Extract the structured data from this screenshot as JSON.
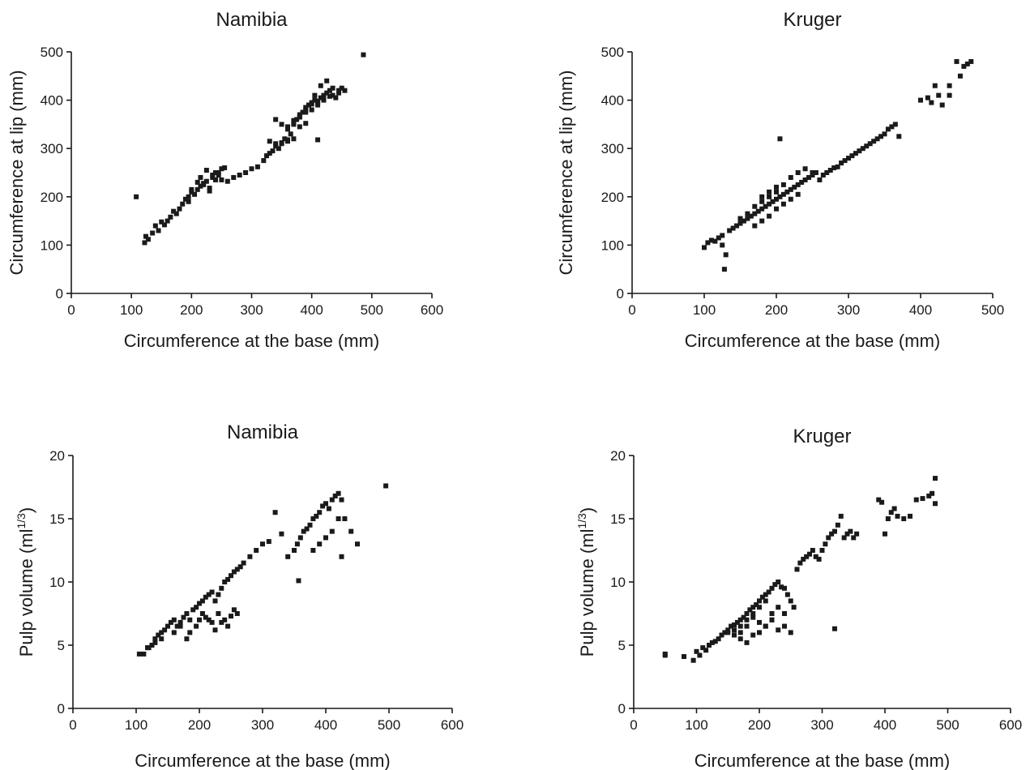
{
  "chart_data": [
    {
      "type": "scatter",
      "title": "Namibia",
      "xlabel": "Circumference at the base (mm)",
      "ylabel": "Circumference at lip (mm)",
      "xlim": [
        0,
        600
      ],
      "ylim": [
        0,
        500
      ],
      "xticks": [
        "0",
        "100",
        "200",
        "300",
        "400",
        "500",
        "600"
      ],
      "yticks": [
        "0",
        "100",
        "200",
        "300",
        "400",
        "500"
      ],
      "grid": false,
      "marker": "square",
      "color": "#1a1a1a",
      "series": [
        {
          "x": [
            108,
            122,
            124,
            128,
            135,
            140,
            145,
            150,
            155,
            160,
            165,
            170,
            175,
            180,
            185,
            190,
            195,
            200,
            205,
            210,
            215,
            220,
            225,
            230,
            235,
            240,
            245,
            250,
            255,
            210,
            220,
            230,
            240,
            200,
            195,
            215,
            225,
            235,
            245,
            250,
            260,
            270,
            280,
            290,
            300,
            310,
            320,
            325,
            330,
            335,
            340,
            345,
            350,
            355,
            360,
            365,
            370,
            375,
            380,
            385,
            390,
            395,
            400,
            405,
            410,
            415,
            420,
            425,
            430,
            435,
            440,
            445,
            450,
            455,
            360,
            370,
            380,
            390,
            400,
            410,
            420,
            430,
            340,
            350,
            360,
            370,
            380,
            390,
            400,
            410,
            420,
            330,
            340,
            350,
            360,
            370,
            380,
            390,
            405,
            415,
            425,
            435,
            445,
            410,
            486
          ],
          "y": [
            200,
            105,
            118,
            112,
            125,
            140,
            130,
            148,
            142,
            150,
            158,
            170,
            165,
            175,
            185,
            195,
            200,
            210,
            205,
            215,
            222,
            228,
            232,
            218,
            240,
            250,
            245,
            258,
            260,
            230,
            225,
            212,
            235,
            215,
            190,
            240,
            255,
            245,
            250,
            235,
            232,
            240,
            245,
            250,
            258,
            262,
            275,
            285,
            290,
            295,
            310,
            300,
            312,
            320,
            315,
            330,
            350,
            360,
            365,
            375,
            380,
            390,
            392,
            400,
            395,
            405,
            410,
            415,
            420,
            410,
            405,
            415,
            425,
            420,
            340,
            355,
            370,
            385,
            395,
            398,
            402,
            408,
            360,
            350,
            345,
            358,
            365,
            375,
            380,
            390,
            400,
            315,
            305,
            310,
            318,
            320,
            345,
            352,
            410,
            430,
            440,
            425,
            420,
            318,
            494
          ]
        }
      ]
    },
    {
      "type": "scatter",
      "title": "Kruger",
      "xlabel": "Circumference at the base (mm)",
      "ylabel": "Circumference at lip (mm)",
      "xlim": [
        0,
        500
      ],
      "ylim": [
        0,
        500
      ],
      "xticks": [
        "0",
        "100",
        "200",
        "300",
        "400",
        "500"
      ],
      "yticks": [
        "0",
        "100",
        "200",
        "300",
        "400",
        "500"
      ],
      "grid": false,
      "marker": "square",
      "color": "#1a1a1a",
      "series": [
        {
          "x": [
            100,
            105,
            110,
            115,
            120,
            125,
            128,
            130,
            135,
            140,
            145,
            150,
            155,
            160,
            165,
            170,
            175,
            180,
            185,
            190,
            195,
            200,
            205,
            210,
            215,
            220,
            225,
            230,
            235,
            240,
            245,
            250,
            255,
            260,
            265,
            270,
            275,
            280,
            285,
            290,
            295,
            300,
            305,
            310,
            315,
            320,
            325,
            330,
            335,
            340,
            345,
            350,
            355,
            360,
            365,
            370,
            150,
            160,
            170,
            180,
            190,
            200,
            210,
            220,
            230,
            240,
            250,
            170,
            180,
            190,
            200,
            210,
            220,
            230,
            180,
            190,
            200,
            125,
            205,
            400,
            410,
            415,
            420,
            425,
            430,
            440,
            450,
            455,
            460,
            465,
            470,
            440
          ],
          "y": [
            95,
            105,
            110,
            108,
            115,
            120,
            50,
            80,
            130,
            135,
            140,
            145,
            150,
            155,
            160,
            165,
            170,
            175,
            180,
            185,
            190,
            195,
            200,
            205,
            210,
            215,
            220,
            225,
            230,
            235,
            240,
            245,
            250,
            235,
            245,
            250,
            255,
            260,
            262,
            270,
            275,
            280,
            285,
            290,
            295,
            300,
            305,
            310,
            315,
            320,
            325,
            330,
            340,
            345,
            350,
            325,
            155,
            165,
            180,
            190,
            200,
            210,
            225,
            240,
            250,
            258,
            250,
            140,
            150,
            160,
            175,
            185,
            195,
            205,
            200,
            210,
            220,
            100,
            320,
            400,
            405,
            395,
            430,
            410,
            390,
            430,
            480,
            450,
            470,
            475,
            480,
            410
          ]
        }
      ]
    },
    {
      "type": "scatter",
      "title": "Namibia",
      "xlabel": "Circumference at the base (mm)",
      "ylabel": "Pulp volume (ml",
      "ylabel_exponent": "1/3",
      "ylabel_suffix": ")",
      "xlim": [
        0,
        600
      ],
      "ylim": [
        0,
        20
      ],
      "xticks": [
        "0",
        "100",
        "200",
        "300",
        "400",
        "500",
        "600"
      ],
      "yticks": [
        "0",
        "5",
        "10",
        "15",
        "20"
      ],
      "grid": false,
      "marker": "square",
      "color": "#1a1a1a",
      "series": [
        {
          "x": [
            105,
            112,
            118,
            125,
            130,
            135,
            140,
            145,
            150,
            155,
            160,
            165,
            170,
            175,
            180,
            185,
            190,
            195,
            200,
            205,
            210,
            215,
            220,
            225,
            230,
            235,
            240,
            245,
            250,
            255,
            260,
            200,
            210,
            220,
            230,
            240,
            250,
            255,
            260,
            265,
            270,
            280,
            290,
            300,
            310,
            320,
            330,
            340,
            350,
            355,
            360,
            365,
            370,
            375,
            380,
            385,
            390,
            395,
            400,
            405,
            410,
            415,
            420,
            425,
            430,
            440,
            450,
            380,
            390,
            400,
            410,
            420,
            357,
            425,
            495,
            185,
            195,
            205,
            215,
            225,
            235,
            245,
            120,
            130,
            140,
            160,
            170,
            180
          ],
          "y": [
            4.3,
            4.3,
            4.8,
            5.0,
            5.5,
            5.8,
            6.0,
            6.2,
            6.5,
            6.8,
            7.0,
            6.5,
            6.8,
            7.2,
            7.5,
            7.0,
            7.8,
            8.0,
            8.3,
            8.5,
            8.8,
            9.0,
            9.2,
            8.5,
            9.0,
            9.5,
            10.0,
            10.2,
            10.5,
            10.8,
            11.0,
            7.0,
            7.2,
            6.8,
            7.5,
            7.0,
            7.3,
            7.8,
            7.5,
            11.2,
            11.5,
            12.0,
            12.5,
            13.0,
            13.2,
            15.5,
            13.8,
            12.0,
            12.5,
            13.0,
            13.5,
            14.0,
            14.2,
            14.5,
            15.0,
            15.2,
            15.5,
            16.0,
            16.2,
            15.8,
            16.5,
            16.8,
            17.0,
            16.5,
            15.0,
            14.0,
            13.0,
            12.5,
            13.0,
            13.5,
            14.0,
            15.0,
            10.1,
            12.0,
            17.6,
            6.0,
            6.5,
            7.5,
            7.0,
            6.2,
            6.8,
            6.5,
            4.8,
            5.2,
            5.5,
            6.0,
            6.5,
            5.5
          ]
        }
      ]
    },
    {
      "type": "scatter",
      "title": "Kruger",
      "xlabel": "Circumference at the base (mm)",
      "ylabel": "Pulp volume (ml",
      "ylabel_exponent": "1/3",
      "ylabel_suffix": ")",
      "xlim": [
        0,
        600
      ],
      "ylim": [
        0,
        20
      ],
      "xticks": [
        "0",
        "100",
        "200",
        "300",
        "400",
        "500",
        "600"
      ],
      "yticks": [
        "0",
        "5",
        "10",
        "15",
        "20"
      ],
      "grid": false,
      "marker": "square",
      "color": "#1a1a1a",
      "series": [
        {
          "x": [
            50,
            50,
            80,
            95,
            100,
            105,
            110,
            115,
            120,
            125,
            130,
            135,
            140,
            145,
            150,
            155,
            160,
            165,
            170,
            175,
            180,
            185,
            190,
            195,
            200,
            205,
            210,
            215,
            220,
            225,
            230,
            235,
            240,
            245,
            250,
            255,
            260,
            265,
            270,
            275,
            280,
            285,
            290,
            295,
            300,
            305,
            310,
            315,
            320,
            325,
            330,
            335,
            340,
            345,
            350,
            355,
            150,
            160,
            170,
            180,
            190,
            200,
            210,
            220,
            230,
            240,
            250,
            160,
            170,
            180,
            190,
            200,
            210,
            220,
            230,
            240,
            170,
            180,
            190,
            200,
            210,
            220,
            320,
            390,
            395,
            400,
            405,
            410,
            415,
            420,
            430,
            440,
            450,
            460,
            470,
            475,
            480,
            480
          ],
          "y": [
            4.3,
            4.2,
            4.1,
            3.8,
            4.5,
            4.2,
            4.8,
            4.6,
            5.0,
            5.2,
            5.3,
            5.5,
            5.8,
            6.0,
            6.2,
            6.5,
            6.6,
            6.8,
            7.0,
            7.2,
            7.5,
            7.8,
            8.0,
            8.2,
            8.5,
            8.8,
            9.0,
            9.2,
            9.5,
            9.8,
            10.0,
            9.6,
            9.5,
            9.0,
            8.5,
            8.0,
            11.0,
            11.5,
            11.8,
            12.0,
            12.2,
            12.5,
            12.0,
            11.8,
            12.5,
            13.0,
            13.5,
            13.8,
            14.0,
            14.5,
            15.2,
            13.5,
            13.8,
            14.0,
            13.5,
            13.8,
            6.0,
            6.2,
            6.5,
            7.0,
            7.2,
            6.8,
            6.5,
            7.0,
            6.2,
            6.5,
            6.0,
            5.8,
            6.0,
            6.5,
            7.5,
            8.0,
            8.5,
            7.5,
            8.0,
            7.5,
            5.5,
            5.2,
            5.8,
            6.0,
            6.5,
            7.0,
            6.3,
            16.5,
            16.3,
            13.8,
            15.0,
            15.5,
            15.8,
            15.2,
            15.0,
            15.2,
            16.5,
            16.6,
            16.8,
            17.0,
            18.2,
            16.2
          ]
        }
      ]
    }
  ]
}
